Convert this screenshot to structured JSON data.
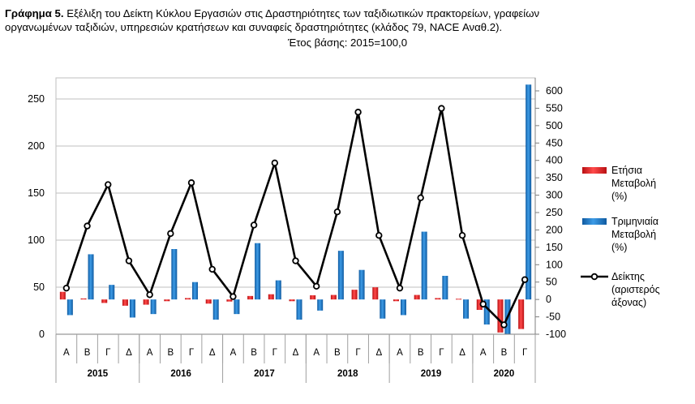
{
  "caption": {
    "lead": "Γράφημα 5.",
    "line1_rest": " Εξέλιξη του Δείκτη Κύκλου Εργασιών στις Δραστηριότητες των ταξιδιωτικών πρακτορείων, γραφείων",
    "line2": "οργανωμένων ταξιδιών, υπηρεσιών κρατήσεων και συναφείς δραστηριότητες (κλάδος 79, NACE Αναθ.2).",
    "line3": "Έτος βάσης: 2015=100,0"
  },
  "chart_data": {
    "type": "bar",
    "quarters": [
      "Α",
      "Β",
      "Γ",
      "Δ",
      "Α",
      "Β",
      "Γ",
      "Δ",
      "Α",
      "Β",
      "Γ",
      "Δ",
      "Α",
      "Β",
      "Γ",
      "Δ",
      "Α",
      "Β",
      "Γ",
      "Δ",
      "Α",
      "Β",
      "Γ"
    ],
    "years": [
      {
        "label": "2015",
        "count": 4
      },
      {
        "label": "2016",
        "count": 4
      },
      {
        "label": "2017",
        "count": 4
      },
      {
        "label": "2018",
        "count": 4
      },
      {
        "label": "2019",
        "count": 4
      },
      {
        "label": "2020",
        "count": 3
      }
    ],
    "left_axis": {
      "ticks": [
        0,
        50,
        100,
        150,
        200,
        250
      ],
      "ylim": [
        0,
        275
      ]
    },
    "right_axis": {
      "ticks": [
        -100,
        -50,
        0,
        50,
        100,
        150,
        200,
        250,
        300,
        350,
        400,
        450,
        500,
        550,
        600
      ],
      "ylim": [
        -100,
        600
      ]
    },
    "series": [
      {
        "name": "Ετήσια Μεταβολή (%)",
        "axis": "right",
        "kind": "bar",
        "color": "#e0191b",
        "values": [
          22,
          3,
          -10,
          -18,
          -15,
          -5,
          4,
          -12,
          -6,
          10,
          15,
          -5,
          12,
          13,
          28,
          35,
          -5,
          13,
          4,
          2,
          -30,
          -95,
          -85
        ]
      },
      {
        "name": "Τριμηνιαία Μεταβολή (%)",
        "axis": "right",
        "kind": "bar",
        "color": "#1f78c8",
        "values": [
          -45,
          130,
          42,
          -52,
          -42,
          145,
          50,
          -58,
          -42,
          162,
          55,
          -58,
          -32,
          140,
          85,
          -55,
          -45,
          195,
          68,
          -55,
          -72,
          -100,
          618
        ]
      },
      {
        "name": "Δείκτης (αριστερός άξονας)",
        "axis": "left",
        "kind": "line",
        "color": "#000000",
        "values": [
          49,
          115,
          159,
          78,
          42,
          107,
          161,
          69,
          40,
          116,
          182,
          78,
          51,
          130,
          236,
          105,
          49,
          145,
          240,
          105,
          32,
          10,
          58
        ]
      }
    ],
    "legend_position": "right"
  }
}
